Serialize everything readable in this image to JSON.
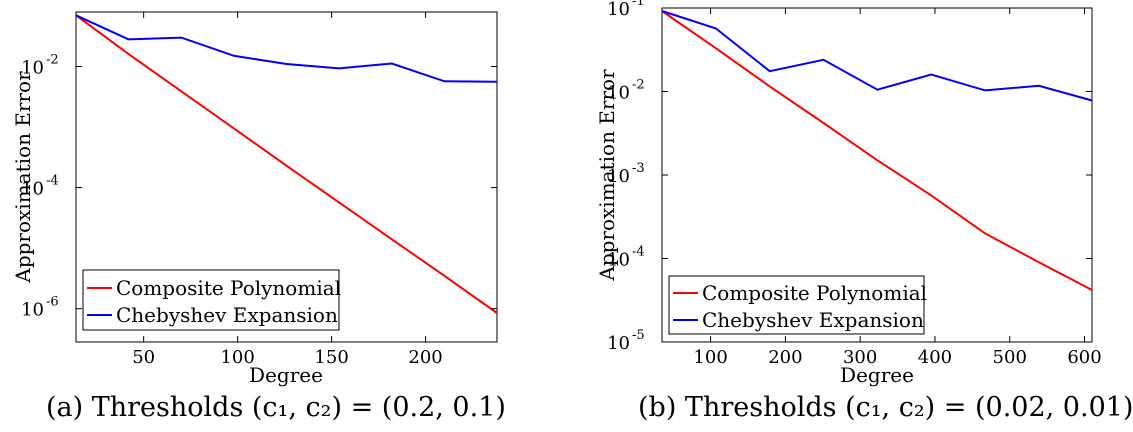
{
  "chart_data": [
    {
      "type": "line",
      "caption": "(a) Thresholds (c₁, c₂) = (0.2, 0.1)",
      "xlabel": "Degree",
      "ylabel": "Approximation Error",
      "xlim": [
        14,
        238
      ],
      "xticks": [
        50,
        100,
        150,
        200
      ],
      "ylog": true,
      "ylim_exp": [
        -6.55,
        -1.1
      ],
      "yticks": [
        {
          "exp": -6,
          "label": "10",
          "sup": "-6"
        },
        {
          "exp": -4,
          "label": "10",
          "sup": "-4"
        },
        {
          "exp": -2,
          "label": "10",
          "sup": "-2"
        }
      ],
      "legend_position": "bottom-left",
      "series": [
        {
          "name": "Composite Polynomial",
          "color": "#ff0000",
          "x": [
            14,
            42,
            70,
            98,
            126,
            154,
            182,
            210,
            238
          ],
          "y": [
            0.07,
            0.016,
            0.0039,
            0.00095,
            0.00023,
            5.7e-05,
            1.4e-05,
            3.5e-06,
            8.5e-07
          ]
        },
        {
          "name": "Chebyshev Expansion",
          "color": "#0000ff",
          "x": [
            14,
            42,
            70,
            98,
            126,
            154,
            182,
            210,
            238
          ],
          "y": [
            0.07,
            0.028,
            0.03,
            0.015,
            0.011,
            0.0093,
            0.0112,
            0.0057,
            0.0056
          ]
        }
      ]
    },
    {
      "type": "line",
      "caption": "(b) Thresholds (c₁, c₂) = (0.02, 0.01)",
      "xlabel": "Degree",
      "ylabel": "Approximation Error",
      "xlim": [
        35,
        610
      ],
      "xticks": [
        100,
        200,
        300,
        400,
        500,
        600
      ],
      "ylog": true,
      "ylim_exp": [
        -5,
        -1
      ],
      "yticks": [
        {
          "exp": -5,
          "label": "10",
          "sup": "-5"
        },
        {
          "exp": -4,
          "label": "10",
          "sup": "-4"
        },
        {
          "exp": -3,
          "label": "10",
          "sup": "-3"
        },
        {
          "exp": -2,
          "label": "10",
          "sup": "-2"
        },
        {
          "exp": -1,
          "label": "10",
          "sup": "-1"
        }
      ],
      "legend_position": "bottom-left",
      "series": [
        {
          "name": "Composite Polynomial",
          "color": "#ff0000",
          "x": [
            35,
            107,
            179,
            251,
            323,
            395,
            467,
            539,
            610
          ],
          "y": [
            0.092,
            0.033,
            0.0115,
            0.0042,
            0.0015,
            0.00057,
            0.0002,
            9e-05,
            4.2e-05
          ]
        },
        {
          "name": "Chebyshev Expansion",
          "color": "#0000ff",
          "x": [
            35,
            107,
            179,
            251,
            323,
            395,
            467,
            539,
            610
          ],
          "y": [
            0.092,
            0.057,
            0.0175,
            0.024,
            0.0105,
            0.016,
            0.0103,
            0.0117,
            0.0078
          ]
        }
      ]
    }
  ]
}
